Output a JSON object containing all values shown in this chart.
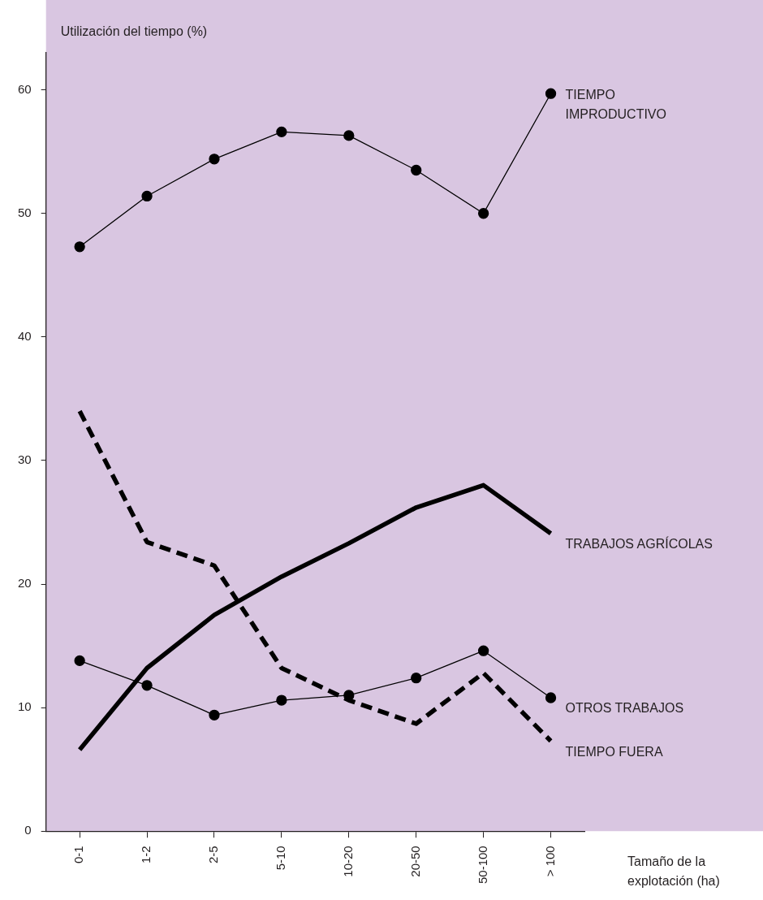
{
  "chart_data": {
    "type": "line",
    "ylabel": "Utilización del tiempo (%)",
    "xlabel": "Tamaño de la\nexplotación (ha)",
    "categories": [
      "0-1",
      "1-2",
      "2-5",
      "5-10",
      "10-20",
      "20-50",
      "50-100",
      "> 100"
    ],
    "ylim": [
      0,
      63
    ],
    "yticks": [
      0,
      10,
      20,
      30,
      40,
      50,
      60
    ],
    "grid": false,
    "legend": false,
    "series": [
      {
        "name": "TIEMPO\nIMPRODUCTIVO",
        "color": "#000000",
        "marker": "circle",
        "line_style": "solid",
        "values": [
          47.3,
          51.4,
          54.4,
          56.6,
          56.3,
          53.5,
          50.0,
          59.7
        ]
      },
      {
        "name": "TRABAJOS AGRÍCOLAS",
        "color": "#000000",
        "marker": "none",
        "line_style": "solid",
        "values": [
          6.6,
          13.2,
          17.5,
          20.6,
          23.3,
          26.2,
          28.0,
          24.1
        ]
      },
      {
        "name": "OTROS TRABAJOS",
        "color": "#000000",
        "marker": "circle",
        "line_style": "solid",
        "values": [
          13.8,
          11.8,
          9.4,
          10.6,
          11.0,
          12.4,
          14.6,
          10.8
        ]
      },
      {
        "name": "TIEMPO FUERA",
        "color": "#000000",
        "marker": "none",
        "line_style": "dashed",
        "values": [
          34.0,
          23.4,
          21.5,
          13.2,
          10.6,
          8.7,
          12.8,
          7.3
        ]
      }
    ]
  }
}
